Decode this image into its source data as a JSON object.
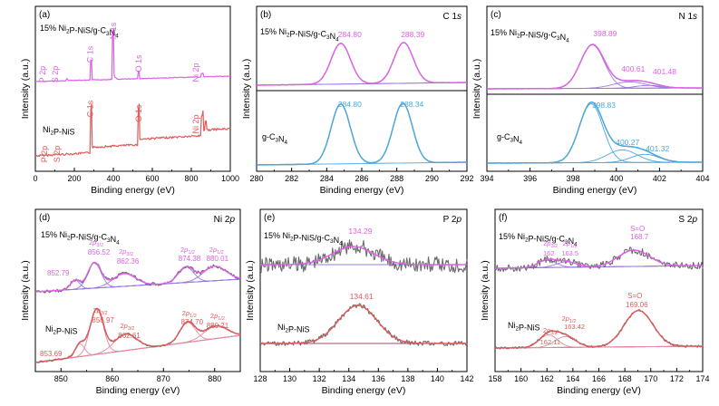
{
  "colors": {
    "composite": "#e060e8",
    "composite_light": "#d050d8",
    "ni2p": "#e25a5a",
    "gcn": "#4aa8e0",
    "raw": "#6b6b6b",
    "baseline_purple": "#9a78e6",
    "baseline_blue": "#6ab4f0",
    "baseline_dark": "#9c4a6a"
  },
  "chart_data": [
    {
      "panel": "(a)",
      "type": "line",
      "title": "",
      "xlabel": "Binding energy (eV)",
      "ylabel": "Intensity (a.u.)",
      "xlim": [
        0,
        1000
      ],
      "xticks": [
        "0",
        "200",
        "400",
        "600",
        "800",
        "1000"
      ],
      "series": [
        {
          "name": "15% Ni₂P-NiS/g-C₃N₄",
          "peak_labels": [
            "P 2p",
            "S 2p",
            "C 1s",
            "N 1s",
            "O 1s",
            "Ni 2p"
          ],
          "peak_positions": [
            133,
            162,
            285,
            399,
            531,
            856
          ]
        },
        {
          "name": "Ni₂P-NiS",
          "peak_labels": [
            "P 2p",
            "S 2p",
            "C 1s",
            "O 1s",
            "Ni 2p"
          ],
          "peak_positions": [
            133,
            162,
            285,
            531,
            856
          ]
        }
      ]
    },
    {
      "panel": "(b)",
      "type": "line",
      "title": "C 1s",
      "xlabel": "Binding energy (eV)",
      "ylabel": "Intensity (a.u.)",
      "xlim": [
        280,
        292
      ],
      "xticks": [
        "280",
        "282",
        "284",
        "286",
        "288",
        "290",
        "292"
      ],
      "series": [
        {
          "name": "15% Ni₂P-NiS/g-C₃N₄",
          "peaks": [
            284.8,
            288.39
          ],
          "peak_labels": [
            "284.80",
            "288.39"
          ]
        },
        {
          "name": "g-C₃N₄",
          "peaks": [
            284.8,
            288.34
          ],
          "peak_labels": [
            "284.80",
            "288.34"
          ]
        }
      ]
    },
    {
      "panel": "(c)",
      "type": "line",
      "title": "N 1s",
      "xlabel": "Binding energy (eV)",
      "ylabel": "Intensity (a.u.)",
      "xlim": [
        394,
        404
      ],
      "xticks": [
        "394",
        "396",
        "398",
        "400",
        "402",
        "404"
      ],
      "series": [
        {
          "name": "15% Ni₂P-NiS/g-C₃N₄",
          "peaks": [
            398.89,
            400.61,
            401.48
          ],
          "peak_labels": [
            "398.89",
            "400.61",
            "401.48"
          ]
        },
        {
          "name": "g-C₃N₄",
          "peaks": [
            398.83,
            400.27,
            401.32
          ],
          "peak_labels": [
            "398.83",
            "400.27",
            "401.32"
          ]
        }
      ]
    },
    {
      "panel": "(d)",
      "type": "line",
      "title": "Ni 2p",
      "xlabel": "Binding energy (eV)",
      "ylabel": "Intensity (a.u.)",
      "xlim": [
        845,
        885
      ],
      "xticks": [
        "850",
        "860",
        "870",
        "880"
      ],
      "series": [
        {
          "name": "15% Ni₂P-NiS/g-C₃N₄",
          "peaks": [
            852.79,
            856.52,
            862.36,
            874.38,
            880.01
          ],
          "peak_labels": [
            "852.79",
            "856.52",
            "862.36",
            "874.38",
            "880.01"
          ],
          "component_labels": [
            "2p3/2",
            "2p3/2",
            "2p1/2",
            "2p1/2"
          ]
        },
        {
          "name": "Ni₂P-NiS",
          "peaks": [
            853.69,
            856.97,
            862.61,
            874.7,
            880.21
          ],
          "peak_labels": [
            "853.69",
            "856.97",
            "862.61",
            "874.70",
            "880.21"
          ],
          "component_labels": [
            "2p3/2",
            "2p3/2",
            "2p1/2",
            "2p1/2"
          ]
        }
      ]
    },
    {
      "panel": "(e)",
      "type": "line",
      "title": "P 2p",
      "xlabel": "Binding energy (eV)",
      "ylabel": "Intensity (a.u.)",
      "xlim": [
        128,
        142
      ],
      "xticks": [
        "128",
        "130",
        "132",
        "134",
        "136",
        "138",
        "140",
        "142"
      ],
      "series": [
        {
          "name": "15% Ni₂P-NiS/g-C₃N₄",
          "peaks": [
            134.29
          ],
          "peak_labels": [
            "134.29"
          ]
        },
        {
          "name": "Ni₂P-NiS",
          "peaks": [
            134.61
          ],
          "peak_labels": [
            "134.61"
          ]
        }
      ]
    },
    {
      "panel": "(f)",
      "type": "line",
      "title": "S 2p",
      "xlabel": "Binding energy (eV)",
      "ylabel": "Intensity (a.u.)",
      "xlim": [
        158,
        174
      ],
      "xticks": [
        "158",
        "160",
        "162",
        "164",
        "166",
        "168",
        "170",
        "172",
        "174"
      ],
      "series": [
        {
          "name": "15% Ni₂P-NiS/g-C₃N₄",
          "peaks": [
            162.0,
            163.5,
            168.7
          ],
          "peak_labels": [
            "162",
            "163.5",
            "168.7"
          ],
          "component_labels": [
            "2p3/2",
            "2p1/2",
            "S=O"
          ]
        },
        {
          "name": "Ni₂P-NiS",
          "peaks": [
            162.11,
            163.42,
            169.06
          ],
          "peak_labels": [
            "162.11",
            "163.42",
            "169.06"
          ],
          "component_labels": [
            "2p3/2",
            "2p1/2",
            "S=O"
          ]
        }
      ]
    }
  ]
}
